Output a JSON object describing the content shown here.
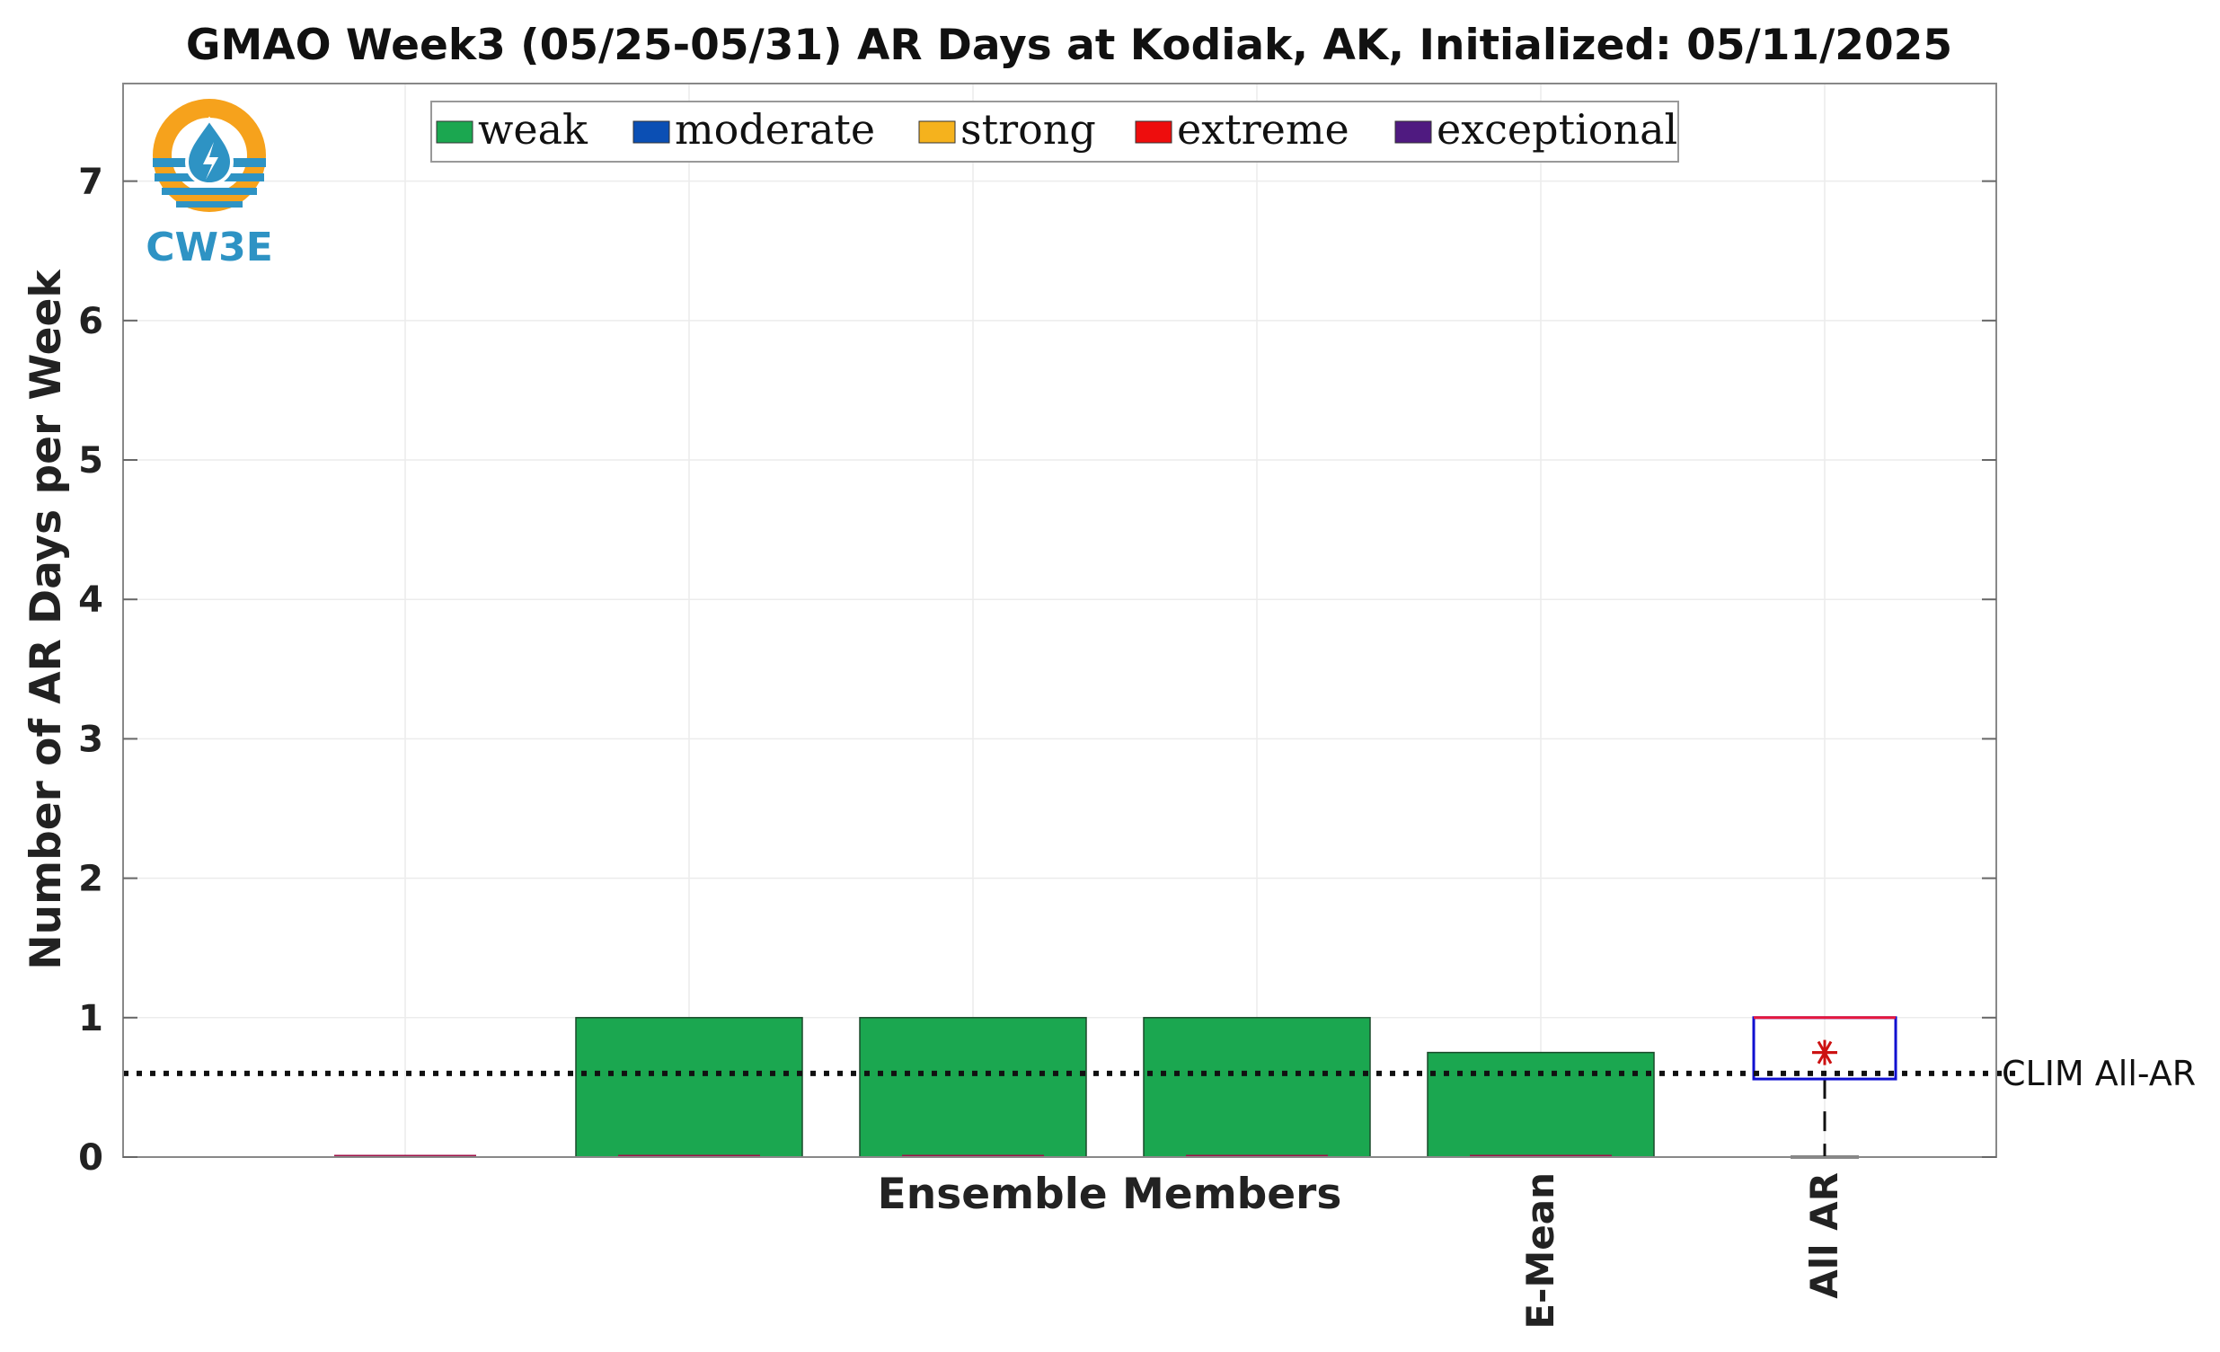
{
  "chart_data": {
    "type": "bar",
    "title": "GMAO Week3 (05/25-05/31) AR Days at Kodiak, AK, Initialized: 05/11/2025",
    "xlabel": "Ensemble Members",
    "ylabel": "Number of AR Days per Week",
    "ylim": [
      0,
      7.7
    ],
    "yticks": [
      0,
      1,
      2,
      3,
      4,
      5,
      6,
      7
    ],
    "grid": true,
    "legend_position": "top",
    "legend": [
      {
        "name": "weak",
        "color": "#1ba750"
      },
      {
        "name": "moderate",
        "color": "#0b4fb4"
      },
      {
        "name": "strong",
        "color": "#f5b21d"
      },
      {
        "name": "extreme",
        "color": "#ee0d0d"
      },
      {
        "name": "exceptional",
        "color": "#4f1a80"
      }
    ],
    "categories": [
      "",
      "",
      "",
      "",
      "E-Mean",
      "All AR"
    ],
    "bars": [
      {
        "weak": 0
      },
      {
        "weak": 1
      },
      {
        "weak": 1
      },
      {
        "weak": 1
      },
      {
        "weak": 0.75
      }
    ],
    "boxplot": {
      "category": "All AR",
      "min": 0,
      "q1": 0.56,
      "median": 1,
      "q3": 1,
      "max": 1,
      "mean": 0.75,
      "box_color": "#1010d0",
      "median_color": "#e8173b",
      "mean_color": "#cc1111"
    },
    "reference_line": {
      "label": "CLIM All-AR",
      "value": 0.6
    }
  },
  "logo": {
    "text": "CW3E"
  }
}
